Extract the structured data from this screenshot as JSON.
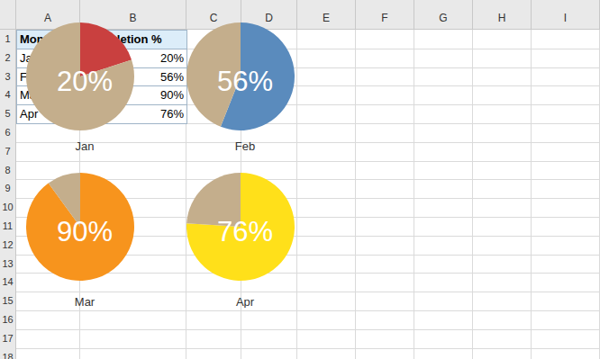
{
  "sheet": {
    "columns": [
      "A",
      "B",
      "C",
      "D",
      "E",
      "F",
      "G",
      "H",
      "I"
    ],
    "rows": [
      1,
      2,
      3,
      4,
      5,
      6,
      7,
      8,
      9,
      10,
      11,
      12,
      13,
      14,
      15,
      16,
      17,
      18
    ],
    "table": {
      "header": [
        "Month",
        "Completion %"
      ],
      "rows": [
        [
          "Jan",
          "20%"
        ],
        [
          "Feb",
          "56%"
        ],
        [
          "Mar",
          "90%"
        ],
        [
          "Apr",
          "76%"
        ]
      ]
    }
  },
  "chart_data": [
    {
      "type": "pie",
      "title": "Jan",
      "values": [
        20,
        80
      ],
      "colors": [
        "#c9403f",
        "#c4ae8c"
      ],
      "annotation": "20%"
    },
    {
      "type": "pie",
      "title": "Feb",
      "values": [
        56,
        44
      ],
      "colors": [
        "#5a8bbd",
        "#c4ae8c"
      ],
      "annotation": "56%"
    },
    {
      "type": "pie",
      "title": "Mar",
      "values": [
        90,
        10
      ],
      "colors": [
        "#f7941d",
        "#c4ae8c"
      ],
      "annotation": "90%"
    },
    {
      "type": "pie",
      "title": "Apr",
      "values": [
        76,
        24
      ],
      "colors": [
        "#ffe01a",
        "#c4ae8c"
      ],
      "annotation": "76%"
    }
  ]
}
